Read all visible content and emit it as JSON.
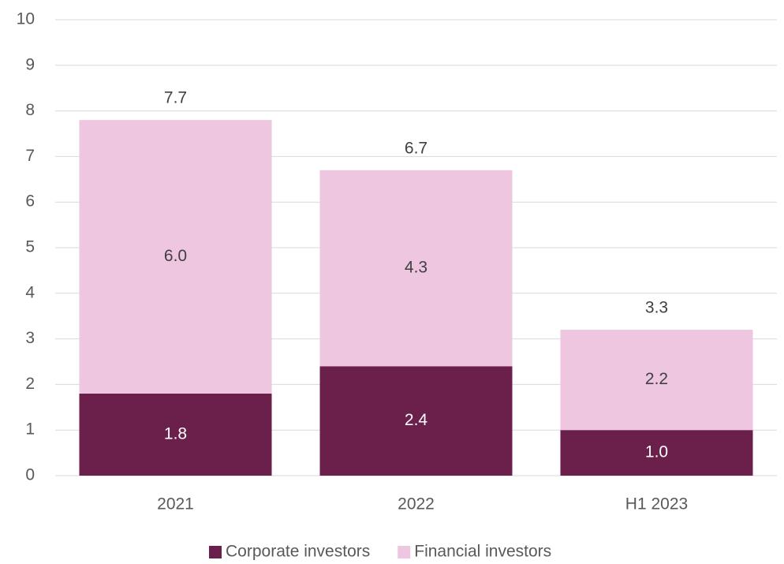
{
  "chart_data": {
    "type": "stacked_bar",
    "categories": [
      "2021",
      "2022",
      "H1 2023"
    ],
    "series": [
      {
        "name": "Corporate investors",
        "color": "#6b1f4b",
        "values": [
          1.8,
          2.4,
          1.0
        ],
        "value_labels": [
          "1.8",
          "2.4",
          "1.0"
        ]
      },
      {
        "name": "Financial investors",
        "color": "#eec6df",
        "values": [
          6.0,
          4.3,
          2.2
        ],
        "value_labels": [
          "6.0",
          "4.3",
          "2.2"
        ]
      }
    ],
    "totals": [
      7.7,
      6.7,
      3.3
    ],
    "ylim": [
      0,
      10
    ],
    "yticks": [
      0,
      1,
      2,
      3,
      4,
      5,
      6,
      7,
      8,
      9,
      10
    ],
    "grid": true,
    "legend": "bottom"
  }
}
